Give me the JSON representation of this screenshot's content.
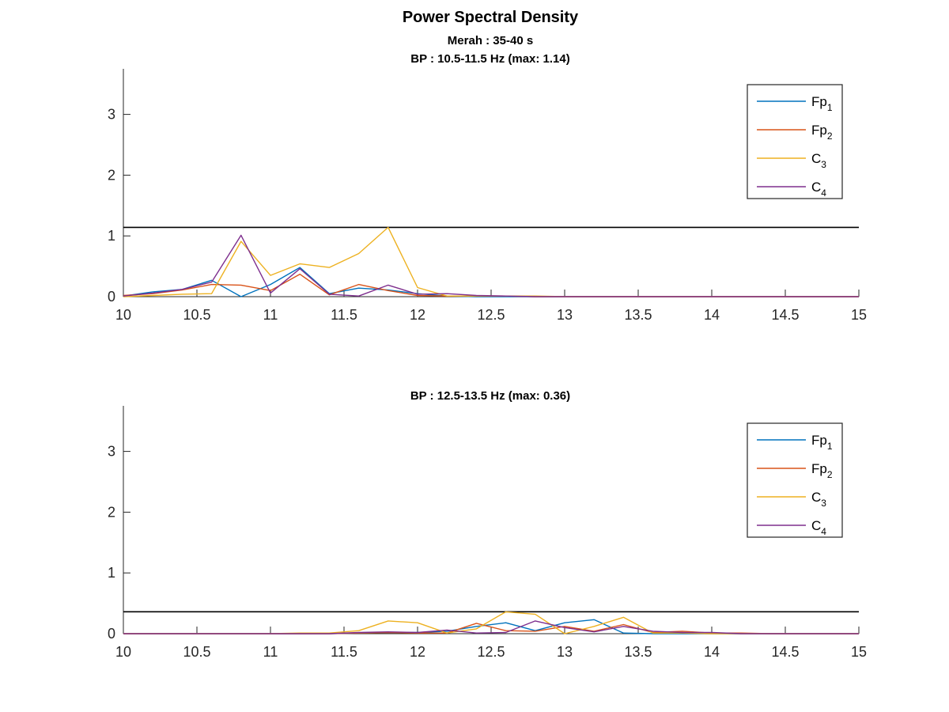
{
  "figure_title": "Power Spectral Density",
  "colors": {
    "Fp1": "#0072BD",
    "Fp2": "#D95319",
    "C3": "#EDB120",
    "C4": "#7E2F8E",
    "threshold": "#000000",
    "axis": "#262626"
  },
  "chart_data": [
    {
      "type": "line",
      "subtitle": "Merah : 35-40 s",
      "title": "BP : 10.5-11.5 Hz (max: 1.14)",
      "xlim": [
        10,
        15
      ],
      "ylim": [
        0,
        3.75
      ],
      "x_ticks": [
        "10",
        "10.5",
        "11",
        "11.5",
        "12",
        "12.5",
        "13",
        "13.5",
        "14",
        "14.5",
        "15"
      ],
      "y_ticks": [
        "0",
        "1",
        "2",
        "3"
      ],
      "grid": false,
      "legend_position": "top-right",
      "threshold": 1.14,
      "x": [
        10,
        10.2,
        10.4,
        10.6,
        10.8,
        11,
        11.2,
        11.4,
        11.6,
        11.8,
        12,
        12.2,
        12.4,
        12.6,
        12.8,
        13,
        13.2,
        13.4,
        13.6,
        13.8,
        14,
        14.2,
        14.4,
        14.6,
        14.8,
        15
      ],
      "series": [
        {
          "name": "Fp",
          "sub": "1",
          "values": [
            0.01,
            0.08,
            0.12,
            0.27,
            0.0,
            0.2,
            0.48,
            0.05,
            0.14,
            0.11,
            0.05,
            0.01,
            0.0,
            0.0,
            0.0,
            0.0,
            0.0,
            0.0,
            0.0,
            0.0,
            0.0,
            0.0,
            0.0,
            0.0,
            0.0,
            0.0
          ]
        },
        {
          "name": "Fp",
          "sub": "2",
          "values": [
            0.02,
            0.05,
            0.11,
            0.2,
            0.19,
            0.1,
            0.37,
            0.03,
            0.2,
            0.1,
            0.02,
            0.01,
            0.01,
            0.01,
            0.0,
            0.0,
            0.0,
            0.0,
            0.0,
            0.0,
            0.0,
            0.0,
            0.0,
            0.0,
            0.0,
            0.0
          ]
        },
        {
          "name": "C",
          "sub": "3",
          "values": [
            0.0,
            0.02,
            0.04,
            0.05,
            0.91,
            0.35,
            0.54,
            0.48,
            0.71,
            1.14,
            0.15,
            0.01,
            0.01,
            0.01,
            0.01,
            0.0,
            0.0,
            0.0,
            0.0,
            0.0,
            0.0,
            0.0,
            0.0,
            0.0,
            0.0,
            0.0
          ]
        },
        {
          "name": "C",
          "sub": "4",
          "values": [
            0.01,
            0.06,
            0.12,
            0.24,
            1.01,
            0.06,
            0.46,
            0.04,
            0.01,
            0.19,
            0.04,
            0.05,
            0.02,
            0.01,
            0.0,
            0.0,
            0.0,
            0.0,
            0.0,
            0.0,
            0.0,
            0.0,
            0.0,
            0.0,
            0.0,
            0.0
          ]
        }
      ]
    },
    {
      "type": "line",
      "title": "BP : 12.5-13.5 Hz (max: 0.36)",
      "xlim": [
        10,
        15
      ],
      "ylim": [
        0,
        3.75
      ],
      "x_ticks": [
        "10",
        "10.5",
        "11",
        "11.5",
        "12",
        "12.5",
        "13",
        "13.5",
        "14",
        "14.5",
        "15"
      ],
      "y_ticks": [
        "0",
        "1",
        "2",
        "3"
      ],
      "grid": false,
      "legend_position": "top-right",
      "threshold": 0.36,
      "x": [
        10,
        10.2,
        10.4,
        10.6,
        10.8,
        11,
        11.2,
        11.4,
        11.6,
        11.8,
        12,
        12.2,
        12.4,
        12.6,
        12.8,
        13,
        13.2,
        13.4,
        13.6,
        13.8,
        14,
        14.2,
        14.4,
        14.6,
        14.8,
        15
      ],
      "series": [
        {
          "name": "Fp",
          "sub": "1",
          "values": [
            0.0,
            0.0,
            0.0,
            0.0,
            0.0,
            0.0,
            0.0,
            0.0,
            0.01,
            0.02,
            0.02,
            0.04,
            0.12,
            0.18,
            0.05,
            0.18,
            0.23,
            0.01,
            0.0,
            0.0,
            0.0,
            0.0,
            0.0,
            0.0,
            0.0,
            0.0
          ]
        },
        {
          "name": "Fp",
          "sub": "2",
          "values": [
            0.0,
            0.0,
            0.0,
            0.0,
            0.0,
            0.0,
            0.0,
            0.0,
            0.01,
            0.02,
            0.01,
            0.01,
            0.17,
            0.05,
            0.04,
            0.12,
            0.04,
            0.15,
            0.02,
            0.04,
            0.01,
            0.01,
            0.0,
            0.0,
            0.0,
            0.0
          ]
        },
        {
          "name": "C",
          "sub": "3",
          "values": [
            0.0,
            0.0,
            0.0,
            0.0,
            0.0,
            0.0,
            0.01,
            0.01,
            0.05,
            0.21,
            0.18,
            0.01,
            0.08,
            0.36,
            0.32,
            0.0,
            0.12,
            0.27,
            0.01,
            0.01,
            0.0,
            0.0,
            0.0,
            0.0,
            0.0,
            0.0
          ]
        },
        {
          "name": "C",
          "sub": "4",
          "values": [
            0.0,
            0.0,
            0.0,
            0.0,
            0.0,
            0.0,
            0.0,
            0.0,
            0.02,
            0.03,
            0.02,
            0.06,
            0.01,
            0.02,
            0.21,
            0.1,
            0.03,
            0.12,
            0.04,
            0.02,
            0.02,
            0.0,
            0.0,
            0.0,
            0.0,
            0.0
          ]
        }
      ]
    }
  ]
}
